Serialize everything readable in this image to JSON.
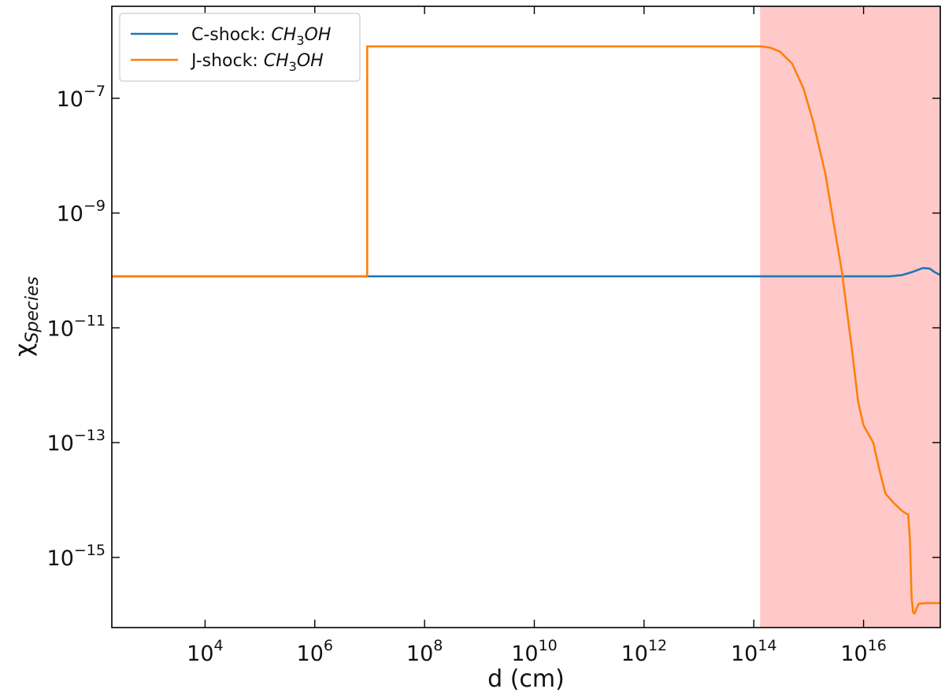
{
  "chart_data": {
    "type": "line",
    "title": "",
    "xlabel": "d (cm)",
    "ylabel_main": "χ",
    "ylabel_sub": "Species",
    "x_scale": "log",
    "y_scale": "log",
    "xlim": [
      200,
      2.5e+17
    ],
    "ylim": [
      6e-17,
      4e-06
    ],
    "x_ticks": [
      {
        "value": 10000.0,
        "base": "10",
        "exp": "4"
      },
      {
        "value": 1000000.0,
        "base": "10",
        "exp": "6"
      },
      {
        "value": 100000000.0,
        "base": "10",
        "exp": "8"
      },
      {
        "value": 10000000000.0,
        "base": "10",
        "exp": "10"
      },
      {
        "value": 1000000000000.0,
        "base": "10",
        "exp": "12"
      },
      {
        "value": 100000000000000.0,
        "base": "10",
        "exp": "14"
      },
      {
        "value": 1e+16,
        "base": "10",
        "exp": "16"
      }
    ],
    "y_ticks": [
      {
        "value": 1e-15,
        "base": "10",
        "exp": "−15"
      },
      {
        "value": 1e-13,
        "base": "10",
        "exp": "−13"
      },
      {
        "value": 1e-11,
        "base": "10",
        "exp": "−11"
      },
      {
        "value": 1e-09,
        "base": "10",
        "exp": "−9"
      },
      {
        "value": 1e-07,
        "base": "10",
        "exp": "−7"
      }
    ],
    "grid": false,
    "legend_position": "top-left",
    "shaded_region": {
      "x_start": 130000000000000.0,
      "x_end": 2.5e+17,
      "color": "#ffc9c9"
    },
    "series": [
      {
        "name_prefix": "C-shock: ",
        "name_species": "CH",
        "name_sub": "3",
        "name_suffix": "OH",
        "color": "#1f77b4",
        "points": [
          [
            200,
            7.9e-11
          ],
          [
            9000000.0,
            7.9e-11
          ],
          [
            10000000000.0,
            7.9e-11
          ],
          [
            100000000000000.0,
            7.9e-11
          ],
          [
            1e+16,
            7.9e-11
          ],
          [
            3e+16,
            7.9e-11
          ],
          [
            5e+16,
            8.3e-11
          ],
          [
            8e+16,
            9.5e-11
          ],
          [
            1.2e+17,
            1.1e-10
          ],
          [
            1.6e+17,
            1.08e-10
          ],
          [
            2e+17,
            9.3e-11
          ],
          [
            2.5e+17,
            8.3e-11
          ]
        ]
      },
      {
        "name_prefix": "J-shock: ",
        "name_species": "CH",
        "name_sub": "3",
        "name_suffix": "OH",
        "color": "#ff7f0e",
        "points": [
          [
            200,
            7.9e-11
          ],
          [
            9000000.0,
            7.9e-11
          ],
          [
            9000000.0,
            8e-07
          ],
          [
            10000000000.0,
            8e-07
          ],
          [
            140000000000000.0,
            8e-07
          ],
          [
            200000000000000.0,
            7.6e-07
          ],
          [
            300000000000000.0,
            6.5e-07
          ],
          [
            500000000000000.0,
            4e-07
          ],
          [
            800000000000000.0,
            1.5e-07
          ],
          [
            1200000000000000.0,
            4e-08
          ],
          [
            2000000000000000.0,
            5e-09
          ],
          [
            3000000000000000.0,
            5e-10
          ],
          [
            4000000000000000.0,
            1e-10
          ],
          [
            6000000000000000.0,
            5e-12
          ],
          [
            8000000000000000.0,
            5e-13
          ],
          [
            1e+16,
            2e-13
          ],
          [
            1.5e+16,
            1e-13
          ],
          [
            2e+16,
            3e-14
          ],
          [
            2.5e+16,
            1.3e-14
          ],
          [
            3.5e+16,
            9e-15
          ],
          [
            5e+16,
            6.5e-15
          ],
          [
            6e+16,
            5.8e-15
          ],
          [
            6.5e+16,
            5.6e-15
          ],
          [
            7e+16,
            2e-15
          ],
          [
            7.5e+16,
            2e-16
          ],
          [
            8e+16,
            1.1e-16
          ],
          [
            8.5e+16,
            1.05e-16
          ],
          [
            9e+16,
            1.2e-16
          ],
          [
            1e+17,
            1.55e-16
          ],
          [
            1.3e+17,
            1.6e-16
          ],
          [
            2.5e+17,
            1.6e-16
          ]
        ]
      }
    ]
  }
}
